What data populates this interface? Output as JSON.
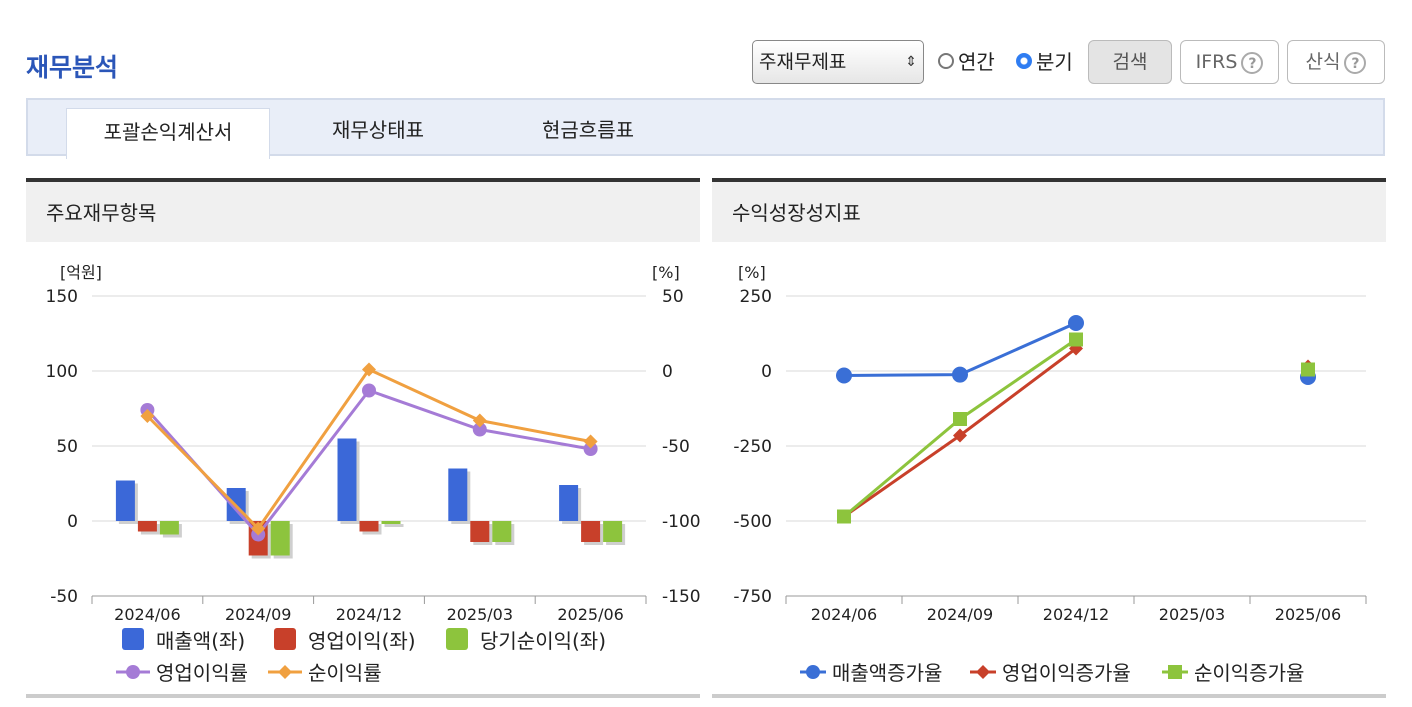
{
  "page": {
    "title": "재무분석",
    "select_value": "주재무제표",
    "radio_annual": "연간",
    "radio_quarter": "분기",
    "search_label": "검색",
    "ifrs_label": "IFRS",
    "formula_label": "산식",
    "help_glyph": "?"
  },
  "tabs": [
    {
      "label": "포괄손익계산서",
      "active": true
    },
    {
      "label": "재무상태표",
      "active": false
    },
    {
      "label": "현금흐름표",
      "active": false
    }
  ],
  "left_panel_title": "주요재무항목",
  "right_panel_title": "수익성장성지표",
  "chart_data": [
    {
      "type": "bar",
      "categories": [
        "2024/06",
        "2024/09",
        "2024/12",
        "2025/03",
        "2025/06"
      ],
      "left_unit": "[억원]",
      "right_unit": "[%]",
      "ylim": [
        -50,
        150
      ],
      "yticks": [
        150,
        100,
        50,
        0,
        -50
      ],
      "y2lim": [
        -150,
        50
      ],
      "y2ticks": [
        50,
        0,
        -50,
        -100,
        -150
      ],
      "series": [
        {
          "name": "매출액(좌)",
          "type": "bar",
          "axis": "left",
          "color": "#3b68d8",
          "values": [
            27,
            22,
            55,
            35,
            24
          ]
        },
        {
          "name": "영업이익(좌)",
          "type": "bar",
          "axis": "left",
          "color": "#c8402a",
          "values": [
            -7,
            -23,
            -7,
            -14,
            -14
          ]
        },
        {
          "name": "당기순이익(좌)",
          "type": "bar",
          "axis": "left",
          "color": "#8dc43d",
          "values": [
            -9,
            -23,
            -2,
            -14,
            -14
          ]
        },
        {
          "name": "영업이익률",
          "type": "line",
          "axis": "right",
          "color": "#a57bd6",
          "marker": "circle",
          "values": [
            -26,
            -109,
            -13,
            -39,
            -52
          ]
        },
        {
          "name": "순이익률",
          "type": "line",
          "axis": "right",
          "color": "#f0a040",
          "marker": "diamond",
          "values": [
            -30,
            -105,
            1,
            -33,
            -47
          ]
        }
      ],
      "legend_position": "bottom"
    },
    {
      "type": "line",
      "categories": [
        "2024/06",
        "2024/09",
        "2024/12",
        "2025/03",
        "2025/06"
      ],
      "unit": "[%]",
      "ylim": [
        -750,
        250
      ],
      "yticks": [
        250,
        0,
        -250,
        -500,
        -750
      ],
      "series": [
        {
          "name": "매출액증가율",
          "color": "#3a6fd6",
          "marker": "circle",
          "values": [
            -15,
            -12,
            160,
            null,
            -20
          ]
        },
        {
          "name": "영업이익증가율",
          "color": "#c8402a",
          "marker": "diamond",
          "values": [
            -485,
            -215,
            75,
            null,
            15
          ]
        },
        {
          "name": "순이익증가율",
          "color": "#8dc43d",
          "marker": "square",
          "values": [
            -485,
            -160,
            105,
            null,
            5
          ]
        }
      ],
      "legend_position": "bottom"
    }
  ]
}
